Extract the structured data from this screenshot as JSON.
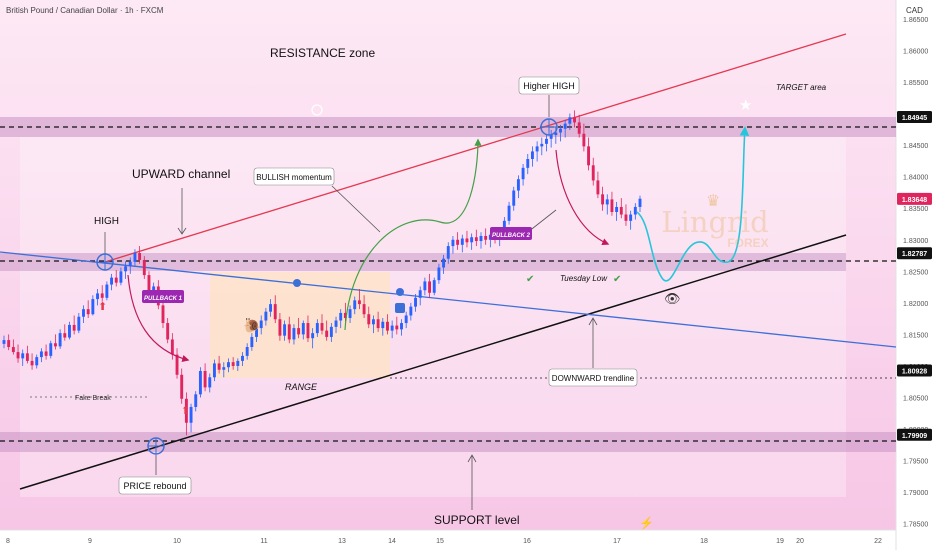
{
  "header": {
    "title": "British Pound / Canadian Dollar · 1h · FXCM",
    "currency": "CAD"
  },
  "watermark": {
    "line1": "Lingrid",
    "line2": "FOREX"
  },
  "chart_data": {
    "type": "candlestick",
    "x_tick_labels": [
      "8",
      "9",
      "10",
      "11",
      "13",
      "14",
      "15",
      "16",
      "17",
      "18",
      "19",
      "20",
      "22"
    ],
    "y_ticks": [
      "1.86500",
      "1.86000",
      "1.85500",
      "1.85000",
      "1.84500",
      "1.84000",
      "1.83500",
      "1.83000",
      "1.82500",
      "1.82000",
      "1.81500",
      "1.81000",
      "1.80500",
      "1.80000",
      "1.79500",
      "1.79000",
      "1.78500"
    ],
    "ylim": [
      1.784,
      1.868
    ],
    "price_badges": [
      {
        "value": "1.84945",
        "style": "level"
      },
      {
        "value": "1.83648",
        "style": "current"
      },
      {
        "value": "1.82787",
        "style": "level"
      },
      {
        "value": "1.80928",
        "style": "level"
      },
      {
        "value": "1.79909",
        "style": "level"
      }
    ],
    "annotations": {
      "resistance": "RESISTANCE zone",
      "upward_channel": "UPWARD channel",
      "high": "HIGH",
      "higher_high": "Higher HIGH",
      "target": "TARGET area",
      "bullish": "BULLISH momentum",
      "pullback1": "PULLBACK 1",
      "pullback2": "PULLBACK 2",
      "range": "RANGE",
      "fake_break": "Fake Break",
      "price_rebound": "PRICE rebound",
      "tuesday_low": "Tuesday Low",
      "downward": "DOWNWARD trendline",
      "support": "SUPPORT level"
    },
    "candles": [
      [
        1.8135,
        1.8148,
        1.8128,
        1.8141
      ],
      [
        1.8141,
        1.815,
        1.8125,
        1.813
      ],
      [
        1.813,
        1.8142,
        1.8118,
        1.8122
      ],
      [
        1.8122,
        1.8134,
        1.8105,
        1.8112
      ],
      [
        1.8112,
        1.8126,
        1.81,
        1.812
      ],
      [
        1.812,
        1.8132,
        1.8104,
        1.8108
      ],
      [
        1.8108,
        1.812,
        1.8094,
        1.8101
      ],
      [
        1.8101,
        1.8118,
        1.8096,
        1.8114
      ],
      [
        1.8114,
        1.8128,
        1.8106,
        1.8123
      ],
      [
        1.8123,
        1.8134,
        1.811,
        1.8116
      ],
      [
        1.8116,
        1.814,
        1.8112,
        1.8136
      ],
      [
        1.8136,
        1.815,
        1.8126,
        1.8131
      ],
      [
        1.8131,
        1.8158,
        1.8127,
        1.8152
      ],
      [
        1.8152,
        1.8166,
        1.814,
        1.8145
      ],
      [
        1.8145,
        1.817,
        1.8142,
        1.8165
      ],
      [
        1.8165,
        1.818,
        1.815,
        1.8156
      ],
      [
        1.8156,
        1.8184,
        1.8152,
        1.8178
      ],
      [
        1.8178,
        1.8196,
        1.8168,
        1.819
      ],
      [
        1.819,
        1.8204,
        1.8176,
        1.8182
      ],
      [
        1.8182,
        1.8212,
        1.818,
        1.8206
      ],
      [
        1.8206,
        1.8222,
        1.8196,
        1.8215
      ],
      [
        1.8215,
        1.8228,
        1.8202,
        1.8208
      ],
      [
        1.8208,
        1.8234,
        1.8204,
        1.8229
      ],
      [
        1.8229,
        1.8246,
        1.822,
        1.824
      ],
      [
        1.824,
        1.8252,
        1.8226,
        1.8232
      ],
      [
        1.8232,
        1.8256,
        1.8228,
        1.825
      ],
      [
        1.825,
        1.8266,
        1.8238,
        1.8258
      ],
      [
        1.8258,
        1.8272,
        1.8246,
        1.8265
      ],
      [
        1.8265,
        1.8285,
        1.8258,
        1.8279
      ],
      [
        1.8279,
        1.829,
        1.8262,
        1.8268
      ],
      [
        1.8268,
        1.8274,
        1.8238,
        1.8244
      ],
      [
        1.8244,
        1.825,
        1.821,
        1.8218
      ],
      [
        1.8218,
        1.8232,
        1.82,
        1.8226
      ],
      [
        1.8226,
        1.8236,
        1.819,
        1.8196
      ],
      [
        1.8196,
        1.8204,
        1.816,
        1.8168
      ],
      [
        1.8168,
        1.8176,
        1.8136,
        1.8142
      ],
      [
        1.8142,
        1.8152,
        1.811,
        1.8118
      ],
      [
        1.8118,
        1.8128,
        1.808,
        1.8086
      ],
      [
        1.8086,
        1.8096,
        1.804,
        1.8048
      ],
      [
        1.8048,
        1.8058,
        1.799,
        1.801
      ],
      [
        1.801,
        1.804,
        1.7995,
        1.8035
      ],
      [
        1.8035,
        1.806,
        1.8028,
        1.8055
      ],
      [
        1.8055,
        1.8098,
        1.805,
        1.8092
      ],
      [
        1.8092,
        1.8104,
        1.806,
        1.8066
      ],
      [
        1.8066,
        1.8088,
        1.8058,
        1.8082
      ],
      [
        1.8082,
        1.811,
        1.8076,
        1.8104
      ],
      [
        1.8104,
        1.8116,
        1.8088,
        1.8094
      ],
      [
        1.8094,
        1.8106,
        1.8082,
        1.8098
      ],
      [
        1.8098,
        1.8112,
        1.809,
        1.8106
      ],
      [
        1.8106,
        1.8114,
        1.8094,
        1.81
      ],
      [
        1.81,
        1.8112,
        1.8092,
        1.8108
      ],
      [
        1.8108,
        1.8122,
        1.81,
        1.8116
      ],
      [
        1.8116,
        1.8136,
        1.811,
        1.813
      ],
      [
        1.813,
        1.8152,
        1.8124,
        1.8146
      ],
      [
        1.8146,
        1.8166,
        1.8138,
        1.816
      ],
      [
        1.816,
        1.818,
        1.815,
        1.8172
      ],
      [
        1.8172,
        1.8192,
        1.8164,
        1.8186
      ],
      [
        1.8186,
        1.8206,
        1.8178,
        1.8198
      ],
      [
        1.8198,
        1.8212,
        1.8168,
        1.8174
      ],
      [
        1.8174,
        1.8184,
        1.814,
        1.8148
      ],
      [
        1.8148,
        1.8172,
        1.814,
        1.8166
      ],
      [
        1.8166,
        1.8178,
        1.8136,
        1.8142
      ],
      [
        1.8142,
        1.8166,
        1.8134,
        1.816
      ],
      [
        1.816,
        1.8176,
        1.8144,
        1.815
      ],
      [
        1.815,
        1.8172,
        1.8142,
        1.8168
      ],
      [
        1.8168,
        1.818,
        1.8138,
        1.8144
      ],
      [
        1.8144,
        1.816,
        1.8128,
        1.8152
      ],
      [
        1.8152,
        1.8174,
        1.8146,
        1.8168
      ],
      [
        1.8168,
        1.8182,
        1.815,
        1.8156
      ],
      [
        1.8156,
        1.8172,
        1.814,
        1.8146
      ],
      [
        1.8146,
        1.8168,
        1.8138,
        1.8162
      ],
      [
        1.8162,
        1.8178,
        1.8152,
        1.8172
      ],
      [
        1.8172,
        1.819,
        1.816,
        1.8184
      ],
      [
        1.8184,
        1.82,
        1.817,
        1.8176
      ],
      [
        1.8176,
        1.8196,
        1.8168,
        1.819
      ],
      [
        1.819,
        1.821,
        1.8182,
        1.8204
      ],
      [
        1.8204,
        1.8222,
        1.819,
        1.8198
      ],
      [
        1.8198,
        1.8212,
        1.8176,
        1.8182
      ],
      [
        1.8182,
        1.8194,
        1.816,
        1.8166
      ],
      [
        1.8166,
        1.818,
        1.8152,
        1.8174
      ],
      [
        1.8174,
        1.8186,
        1.8154,
        1.816
      ],
      [
        1.816,
        1.8176,
        1.8148,
        1.817
      ],
      [
        1.817,
        1.8182,
        1.815,
        1.8156
      ],
      [
        1.8156,
        1.8172,
        1.8144,
        1.8164
      ],
      [
        1.8164,
        1.8178,
        1.815,
        1.8158
      ],
      [
        1.8158,
        1.8174,
        1.8148,
        1.8168
      ],
      [
        1.8168,
        1.8186,
        1.816,
        1.818
      ],
      [
        1.818,
        1.82,
        1.8172,
        1.8194
      ],
      [
        1.8194,
        1.8214,
        1.8186,
        1.8208
      ],
      [
        1.8208,
        1.8226,
        1.8196,
        1.822
      ],
      [
        1.822,
        1.824,
        1.8212,
        1.8234
      ],
      [
        1.8234,
        1.8246,
        1.8208,
        1.8216
      ],
      [
        1.8216,
        1.824,
        1.8212,
        1.8236
      ],
      [
        1.8236,
        1.8262,
        1.823,
        1.8256
      ],
      [
        1.8256,
        1.8276,
        1.8246,
        1.827
      ],
      [
        1.827,
        1.8296,
        1.8262,
        1.829
      ],
      [
        1.829,
        1.8306,
        1.8278,
        1.83
      ],
      [
        1.83,
        1.8312,
        1.8284,
        1.8292
      ],
      [
        1.8292,
        1.8308,
        1.828,
        1.8302
      ],
      [
        1.8302,
        1.8314,
        1.8288,
        1.8296
      ],
      [
        1.8296,
        1.831,
        1.8284,
        1.8304
      ],
      [
        1.8304,
        1.8316,
        1.829,
        1.8298
      ],
      [
        1.8298,
        1.8312,
        1.8286,
        1.8306
      ],
      [
        1.8306,
        1.8318,
        1.8292,
        1.83
      ],
      [
        1.83,
        1.8314,
        1.8288,
        1.8308
      ],
      [
        1.8308,
        1.832,
        1.8294,
        1.8302
      ],
      [
        1.8302,
        1.8316,
        1.829,
        1.831
      ],
      [
        1.831,
        1.8336,
        1.8304,
        1.833
      ],
      [
        1.833,
        1.836,
        1.8324,
        1.8354
      ],
      [
        1.8354,
        1.8384,
        1.8346,
        1.8378
      ],
      [
        1.8378,
        1.8402,
        1.8366,
        1.8396
      ],
      [
        1.8396,
        1.842,
        1.8386,
        1.8414
      ],
      [
        1.8414,
        1.8436,
        1.8404,
        1.8428
      ],
      [
        1.8428,
        1.8448,
        1.8416,
        1.844
      ],
      [
        1.844,
        1.8456,
        1.8424,
        1.8448
      ],
      [
        1.8448,
        1.8462,
        1.8434,
        1.8452
      ],
      [
        1.8452,
        1.8468,
        1.844,
        1.846
      ],
      [
        1.846,
        1.8474,
        1.8446,
        1.8466
      ],
      [
        1.8466,
        1.8478,
        1.8452,
        1.847
      ],
      [
        1.847,
        1.8482,
        1.8456,
        1.8476
      ],
      [
        1.8476,
        1.849,
        1.8462,
        1.8484
      ],
      [
        1.8484,
        1.85,
        1.8474,
        1.8494
      ],
      [
        1.8494,
        1.8505,
        1.8478,
        1.8486
      ],
      [
        1.8486,
        1.8498,
        1.8462,
        1.8468
      ],
      [
        1.8468,
        1.8484,
        1.844,
        1.8448
      ],
      [
        1.8448,
        1.8462,
        1.841,
        1.8418
      ],
      [
        1.8418,
        1.843,
        1.8386,
        1.8394
      ],
      [
        1.8394,
        1.8408,
        1.8366,
        1.8372
      ],
      [
        1.8372,
        1.8384,
        1.8346,
        1.8356
      ],
      [
        1.8356,
        1.8372,
        1.834,
        1.8364
      ],
      [
        1.8364,
        1.8376,
        1.8338,
        1.8344
      ],
      [
        1.8344,
        1.836,
        1.833,
        1.8352
      ],
      [
        1.8352,
        1.8366,
        1.8334,
        1.834
      ],
      [
        1.834,
        1.8356,
        1.8322,
        1.833
      ],
      [
        1.833,
        1.8346,
        1.8316,
        1.834
      ],
      [
        1.834,
        1.8358,
        1.8332,
        1.8352
      ],
      [
        1.8352,
        1.837,
        1.8344,
        1.8365
      ]
    ]
  }
}
